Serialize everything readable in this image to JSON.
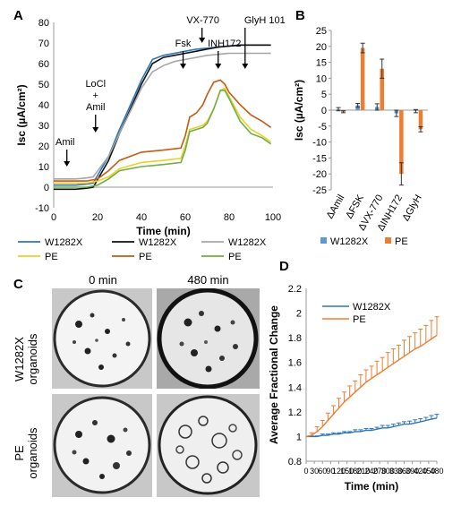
{
  "chart_data": [
    {
      "panel": "A",
      "type": "line",
      "xlabel": "Time (min)",
      "ylabel": "Isc (µA/cm²)",
      "xlim": [
        0,
        100
      ],
      "ylim": [
        -10,
        80
      ],
      "xticks": [
        "0",
        "20",
        "40",
        "60",
        "80",
        "100"
      ],
      "yticks": [
        "-10",
        "0",
        "10",
        "20",
        "30",
        "40",
        "50",
        "60",
        "70",
        "80"
      ],
      "annotations": [
        {
          "text": "Amil",
          "x": 6
        },
        {
          "text": "LoCl",
          "x": 15
        },
        {
          "text": "+",
          "x": 15
        },
        {
          "text": "Amil",
          "x": 15
        },
        {
          "text": "Fsk",
          "x": 59
        },
        {
          "text": "VX-770",
          "x": 66
        },
        {
          "text": "INH172",
          "x": 75
        },
        {
          "text": "GlyH 101",
          "x": 84
        }
      ],
      "series": [
        {
          "name": "W1282X",
          "color": "#2e75b6",
          "x": [
            0,
            5,
            10,
            15,
            18,
            25,
            30,
            35,
            40,
            45,
            50,
            55,
            60,
            65,
            70,
            75,
            80,
            85,
            90,
            95,
            99
          ],
          "y": [
            1,
            1,
            1,
            1.5,
            2,
            15,
            28,
            40,
            52,
            62,
            64,
            65,
            66,
            67,
            67.5,
            68,
            68.5,
            69,
            69,
            69,
            69
          ]
        },
        {
          "name": "W1282X",
          "color": "#111111",
          "x": [
            0,
            5,
            10,
            15,
            18,
            25,
            30,
            35,
            40,
            45,
            50,
            55,
            60,
            65,
            70,
            75,
            80,
            85,
            90,
            95,
            99
          ],
          "y": [
            -1,
            -1,
            -1,
            -0.5,
            0,
            13,
            26,
            38,
            50,
            60,
            63,
            64,
            65,
            66,
            67,
            68,
            68.5,
            69,
            69,
            69,
            69
          ]
        },
        {
          "name": "W1282X",
          "color": "#a6a6a6",
          "x": [
            0,
            5,
            10,
            15,
            18,
            25,
            30,
            35,
            40,
            45,
            50,
            55,
            60,
            65,
            70,
            75,
            80,
            85,
            90,
            95,
            99
          ],
          "y": [
            4,
            4,
            4,
            4.5,
            5,
            15,
            26,
            37,
            48,
            56,
            59,
            61,
            62,
            63,
            64,
            64.5,
            65,
            65,
            65,
            65,
            65
          ]
        },
        {
          "name": "PE",
          "color": "#e6d229",
          "x": [
            0,
            5,
            10,
            15,
            20,
            25,
            30,
            40,
            50,
            58,
            60,
            62,
            65,
            68,
            70,
            73,
            76,
            78,
            80,
            85,
            90,
            95,
            99
          ],
          "y": [
            2,
            2,
            2,
            2,
            3,
            5,
            9,
            12,
            13,
            14,
            20,
            28,
            29,
            30,
            32,
            38,
            47,
            48,
            44,
            34,
            28,
            25,
            22
          ]
        },
        {
          "name": "PE",
          "color": "#c55a11",
          "x": [
            0,
            5,
            10,
            15,
            20,
            25,
            30,
            40,
            50,
            58,
            60,
            62,
            65,
            68,
            70,
            73,
            76,
            78,
            80,
            85,
            90,
            95,
            99
          ],
          "y": [
            3,
            3,
            3,
            3,
            4,
            8,
            13,
            17,
            18,
            19,
            25,
            34,
            36,
            40,
            45,
            51,
            52,
            50,
            46,
            40,
            35,
            32,
            29
          ]
        },
        {
          "name": "PE",
          "color": "#70ad47",
          "x": [
            0,
            5,
            10,
            15,
            20,
            25,
            30,
            40,
            50,
            58,
            60,
            62,
            65,
            68,
            70,
            73,
            76,
            78,
            80,
            85,
            90,
            95,
            99
          ],
          "y": [
            0,
            0,
            0,
            0,
            1,
            4,
            8,
            10,
            11,
            12,
            18,
            27,
            28,
            29,
            31,
            38,
            47,
            47,
            43,
            32,
            26,
            24,
            21
          ]
        }
      ]
    },
    {
      "panel": "B",
      "type": "bar",
      "ylabel": "Isc (µA/cm²)",
      "ylim": [
        -25,
        25
      ],
      "yticks": [
        "25",
        "20",
        "15",
        "10",
        "5",
        "0",
        "-5",
        "-10",
        "-15",
        "-20",
        "-25"
      ],
      "categories": [
        "ΔAmil",
        "ΔFSK",
        "ΔVX-770",
        "ΔINH172",
        "ΔGlyH"
      ],
      "series": [
        {
          "name": "W1282X",
          "color": "#5b9bd5",
          "values": [
            0.3,
            1.5,
            1.0,
            -1.0,
            -0.3
          ],
          "errors": [
            0.5,
            0.6,
            1.0,
            1.0,
            0.5
          ]
        },
        {
          "name": "PE",
          "color": "#ed7d31",
          "values": [
            -0.5,
            19.5,
            13.0,
            -20.0,
            -6.0
          ],
          "errors": [
            0.3,
            1.5,
            3.0,
            3.5,
            0.8
          ]
        }
      ]
    },
    {
      "panel": "D",
      "type": "line",
      "xlabel": "Time (min)",
      "ylabel": "Average Fractional Change",
      "xlim": [
        0,
        480
      ],
      "ylim": [
        0.8,
        2.2
      ],
      "xticks": [
        "0",
        "30",
        "60",
        "90",
        "120",
        "150",
        "180",
        "210",
        "240",
        "270",
        "300",
        "330",
        "360",
        "390",
        "420",
        "450",
        "480"
      ],
      "yticks": [
        "0.8",
        "1",
        "1.2",
        "1.4",
        "1.6",
        "1.8",
        "2",
        "2.2"
      ],
      "x": [
        0,
        20,
        40,
        60,
        80,
        100,
        120,
        140,
        160,
        180,
        200,
        220,
        240,
        260,
        280,
        300,
        320,
        340,
        360,
        380,
        400,
        420,
        440,
        460,
        480
      ],
      "series": [
        {
          "name": "W1282X",
          "color": "#2e75b6",
          "values": [
            1.0,
            1.0,
            1.0,
            1.01,
            1.01,
            1.02,
            1.02,
            1.03,
            1.03,
            1.04,
            1.04,
            1.05,
            1.05,
            1.06,
            1.07,
            1.07,
            1.08,
            1.09,
            1.1,
            1.1,
            1.11,
            1.12,
            1.13,
            1.14,
            1.15
          ],
          "errors": [
            0,
            0.005,
            0.005,
            0.01,
            0.01,
            0.01,
            0.01,
            0.01,
            0.01,
            0.015,
            0.015,
            0.015,
            0.015,
            0.015,
            0.02,
            0.02,
            0.02,
            0.02,
            0.02,
            0.025,
            0.025,
            0.025,
            0.025,
            0.03,
            0.03
          ]
        },
        {
          "name": "PE",
          "color": "#ed7d31",
          "values": [
            1.0,
            1.01,
            1.04,
            1.08,
            1.13,
            1.18,
            1.23,
            1.28,
            1.32,
            1.36,
            1.4,
            1.44,
            1.47,
            1.5,
            1.53,
            1.56,
            1.59,
            1.62,
            1.65,
            1.68,
            1.71,
            1.73,
            1.76,
            1.79,
            1.82
          ],
          "errors": [
            0,
            0.02,
            0.04,
            0.05,
            0.06,
            0.07,
            0.08,
            0.08,
            0.09,
            0.09,
            0.1,
            0.1,
            0.1,
            0.11,
            0.11,
            0.12,
            0.12,
            0.12,
            0.13,
            0.13,
            0.13,
            0.14,
            0.14,
            0.15,
            0.15
          ]
        }
      ]
    }
  ],
  "panel_labels": {
    "a": "A",
    "b": "B",
    "c": "C",
    "d": "D"
  },
  "panel_c": {
    "col_headers": [
      "0 min",
      "480 min"
    ],
    "row_labels": [
      {
        "line1": "W1282X",
        "line2": "organoids"
      },
      {
        "line1": "PE",
        "line2": "organoids"
      }
    ]
  }
}
